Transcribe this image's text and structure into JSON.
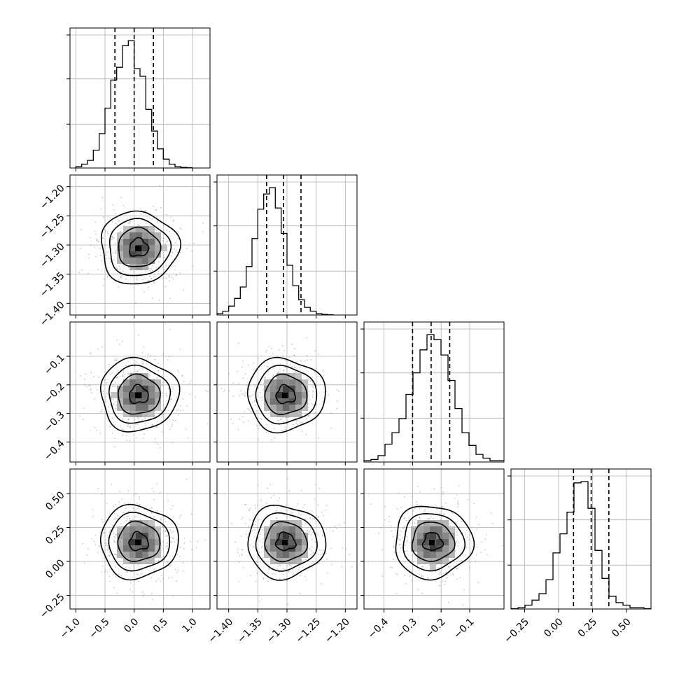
{
  "chart_data": {
    "type": "corner",
    "title": "",
    "grid": true,
    "colors": {
      "line": "#000000",
      "grid": "#b0b0b0",
      "axes": "#000000",
      "scatter": "#888888"
    },
    "parameters": [
      {
        "range": [
          -1.1,
          1.3
        ],
        "ticks": [
          -1.0,
          -0.5,
          0.0,
          0.5,
          1.0
        ],
        "tick_labels": [
          "−1.0",
          "−0.5",
          "0.0",
          "0.5",
          "1.0"
        ],
        "center": 0.0,
        "sigma": 0.33,
        "quantiles": [
          -0.33,
          0.0,
          0.33
        ],
        "hist": {
          "edges_start": -1.0,
          "bin_width": 0.1,
          "counts": [
            0.01,
            0.03,
            0.06,
            0.14,
            0.27,
            0.47,
            0.69,
            0.79,
            0.96,
            1.0,
            0.78,
            0.72,
            0.46,
            0.29,
            0.15,
            0.07,
            0.03,
            0.01,
            0.005,
            0.003
          ]
        }
      },
      {
        "range": [
          -1.42,
          -1.18
        ],
        "ticks": [
          -1.4,
          -1.35,
          -1.3,
          -1.25,
          -1.2
        ],
        "tick_labels": [
          "−1.40",
          "−1.35",
          "−1.30",
          "−1.25",
          "−1.20"
        ],
        "center": -1.305,
        "sigma": 0.03,
        "quantiles": [
          -1.335,
          -1.306,
          -1.276
        ],
        "hist": {
          "edges_start": -1.42,
          "bin_width": 0.01,
          "counts": [
            0.01,
            0.03,
            0.07,
            0.13,
            0.22,
            0.38,
            0.6,
            0.83,
            0.95,
            1.0,
            0.84,
            0.64,
            0.39,
            0.23,
            0.12,
            0.06,
            0.03,
            0.01,
            0.005,
            0.002
          ]
        }
      },
      {
        "range": [
          -0.47,
          0.02
        ],
        "ticks": [
          -0.4,
          -0.3,
          -0.2,
          -0.1
        ],
        "tick_labels": [
          "−0.4",
          "−0.3",
          "−0.2",
          "−0.1"
        ],
        "center": -0.235,
        "sigma": 0.065,
        "quantiles": [
          -0.3,
          -0.235,
          -0.17
        ],
        "hist": {
          "edges_start": -0.47,
          "bin_width": 0.0245,
          "counts": [
            0.01,
            0.02,
            0.05,
            0.14,
            0.23,
            0.34,
            0.53,
            0.7,
            0.88,
            1.0,
            0.96,
            0.84,
            0.64,
            0.42,
            0.23,
            0.13,
            0.06,
            0.03,
            0.01,
            0.01
          ]
        }
      },
      {
        "range": [
          -0.35,
          0.68
        ],
        "ticks": [
          -0.25,
          0.0,
          0.25,
          0.5
        ],
        "tick_labels": [
          "−0.25",
          "0.00",
          "0.25",
          "0.50"
        ],
        "center": 0.24,
        "sigma": 0.125,
        "quantiles": [
          0.11,
          0.24,
          0.37
        ],
        "hist": {
          "edges_start": -0.35,
          "bin_width": 0.0515,
          "counts": [
            0.003,
            0.01,
            0.03,
            0.07,
            0.12,
            0.23,
            0.44,
            0.59,
            0.76,
            0.99,
            1.0,
            0.79,
            0.46,
            0.24,
            0.1,
            0.05,
            0.03,
            0.01,
            0.01,
            0.003
          ]
        }
      }
    ]
  }
}
